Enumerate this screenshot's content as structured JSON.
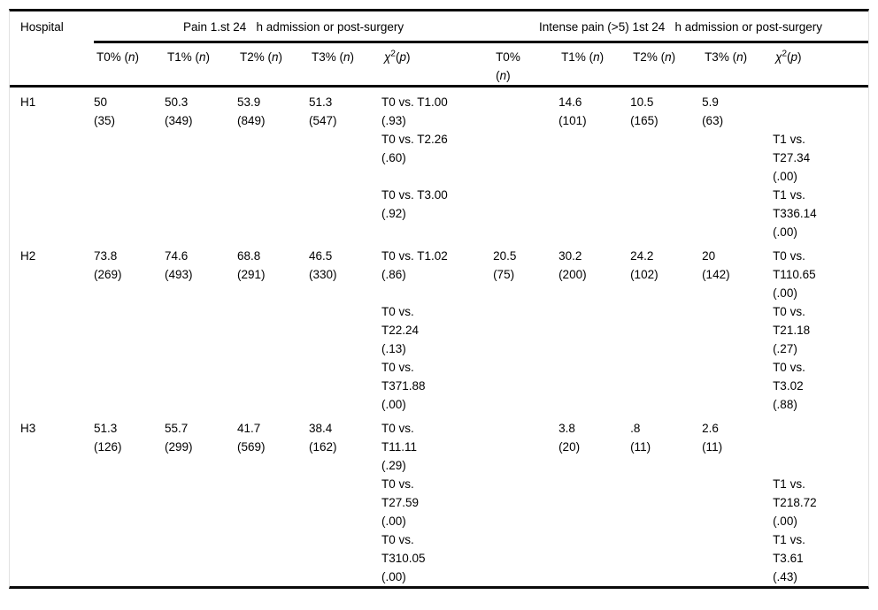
{
  "table": {
    "hospital_header": "Hospital",
    "groups": [
      {
        "label": "Pain 1.st 24   h admission or post-surgery"
      },
      {
        "label": "Intense pain (>5) 1st 24   h admission or post-surgery"
      }
    ],
    "subheaders": [
      "T0% (<i>n</i>)",
      "T1% (<i>n</i>)",
      "T2% (<i>n</i>)",
      "T3% (<i>n</i>)",
      "<i>χ</i><sup>2</sup>(<i>p</i>)",
      "T0%<br>(<i>n</i>)",
      "T1% (<i>n</i>)",
      "T2% (<i>n</i>)",
      "T3% (<i>n</i>)",
      "<i>χ</i><sup>2</sup>(<i>p</i>)"
    ],
    "rows": [
      {
        "hospital": "H1",
        "pain": {
          "t0": [
            "50",
            "(35)"
          ],
          "t1": [
            "50.3",
            "(349)"
          ],
          "t2": [
            "53.9",
            "(849)"
          ],
          "t3": [
            "51.3",
            "(547)"
          ],
          "chi": [
            "T0 vs. T1.00",
            "(.93)",
            "T0 vs. T2.26",
            "(.60)",
            "",
            "T0 vs. T3.00",
            "(.92)"
          ]
        },
        "intense": {
          "t0": [],
          "t1": [
            "14.6",
            "(101)"
          ],
          "t2": [
            "10.5",
            "(165)"
          ],
          "t3": [
            "5.9",
            "(63)"
          ],
          "chi": [
            "",
            "",
            "T1 vs.",
            "T27.34",
            "(.00)",
            "T1 vs.",
            "T336.14",
            "(.00)"
          ]
        }
      },
      {
        "hospital": "H2",
        "pain": {
          "t0": [
            "73.8",
            "(269)"
          ],
          "t1": [
            "74.6",
            "(493)"
          ],
          "t2": [
            "68.8",
            "(291)"
          ],
          "t3": [
            "46.5",
            "(330)"
          ],
          "chi": [
            "T0 vs. T1.02",
            "(.86)",
            "",
            "T0 vs.",
            "T22.24",
            "(.13)",
            "T0 vs.",
            "T371.88",
            "(.00)"
          ]
        },
        "intense": {
          "t0": [
            "20.5",
            "(75)"
          ],
          "t1": [
            "30.2",
            "(200)"
          ],
          "t2": [
            "24.2",
            "(102)"
          ],
          "t3": [
            "20",
            "(142)"
          ],
          "chi": [
            "T0 vs.",
            "T110.65",
            "(.00)",
            "T0 vs.",
            "T21.18",
            "(.27)",
            "T0 vs.",
            "T3.02",
            "(.88)"
          ]
        }
      },
      {
        "hospital": "H3",
        "pain": {
          "t0": [
            "51.3",
            "(126)"
          ],
          "t1": [
            "55.7",
            "(299)"
          ],
          "t2": [
            "41.7",
            "(569)"
          ],
          "t3": [
            "38.4",
            "(162)"
          ],
          "chi": [
            "T0 vs.",
            "T11.11",
            "(.29)",
            "T0 vs.",
            "T27.59",
            "(.00)",
            "T0 vs.",
            "T310.05",
            "(.00)"
          ]
        },
        "intense": {
          "t0": [],
          "t1": [
            "3.8",
            "(20)"
          ],
          "t2": [
            ".8",
            "(11)"
          ],
          "t3": [
            "2.6",
            "(11)"
          ],
          "chi": [
            "",
            "",
            "",
            "T1 vs.",
            "T218.72",
            "(.00)",
            "T1 vs.",
            "T3.61",
            "(.43)"
          ]
        }
      }
    ]
  }
}
